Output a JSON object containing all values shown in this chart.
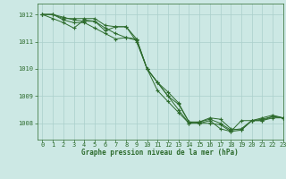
{
  "title": "Graphe pression niveau de la mer (hPa)",
  "background_color": "#cce8e4",
  "line_color": "#2d6b2d",
  "grid_color": "#aacfcb",
  "xlim": [
    -0.5,
    23
  ],
  "ylim": [
    1007.4,
    1012.4
  ],
  "yticks": [
    1008,
    1009,
    1010,
    1011,
    1012
  ],
  "xticks": [
    0,
    1,
    2,
    3,
    4,
    5,
    6,
    7,
    8,
    9,
    10,
    11,
    12,
    13,
    14,
    15,
    16,
    17,
    18,
    19,
    20,
    21,
    22,
    23
  ],
  "series": [
    [
      1012.0,
      1012.0,
      1011.85,
      1011.85,
      1011.85,
      1011.85,
      1011.6,
      1011.55,
      1011.55,
      1011.1,
      1010.0,
      1009.5,
      1009.15,
      1008.75,
      1008.05,
      1008.0,
      1008.0,
      1007.95,
      1007.7,
      1007.75,
      1008.1,
      1008.15,
      1008.25,
      1008.2
    ],
    [
      1012.0,
      1011.85,
      1011.7,
      1011.5,
      1011.8,
      1011.75,
      1011.4,
      1011.55,
      1011.55,
      1011.0,
      1010.0,
      1009.5,
      1009.0,
      1008.7,
      1008.05,
      1008.05,
      1008.2,
      1008.15,
      1007.8,
      1007.75,
      1008.1,
      1008.1,
      1008.2,
      1008.2
    ],
    [
      1012.0,
      1012.0,
      1011.9,
      1011.8,
      1011.75,
      1011.75,
      1011.5,
      1011.3,
      1011.15,
      1011.05,
      1010.0,
      1009.2,
      1008.8,
      1008.4,
      1008.0,
      1008.05,
      1008.15,
      1008.0,
      1007.75,
      1007.8,
      1008.1,
      1008.1,
      1008.25,
      1008.2
    ],
    [
      1012.0,
      1012.0,
      1011.8,
      1011.7,
      1011.7,
      1011.5,
      1011.3,
      1011.1,
      1011.15,
      1011.1,
      1010.0,
      1009.5,
      1009.0,
      1008.5,
      1008.0,
      1008.0,
      1008.1,
      1007.8,
      1007.7,
      1008.1,
      1008.1,
      1008.2,
      1008.3,
      1008.2
    ]
  ]
}
